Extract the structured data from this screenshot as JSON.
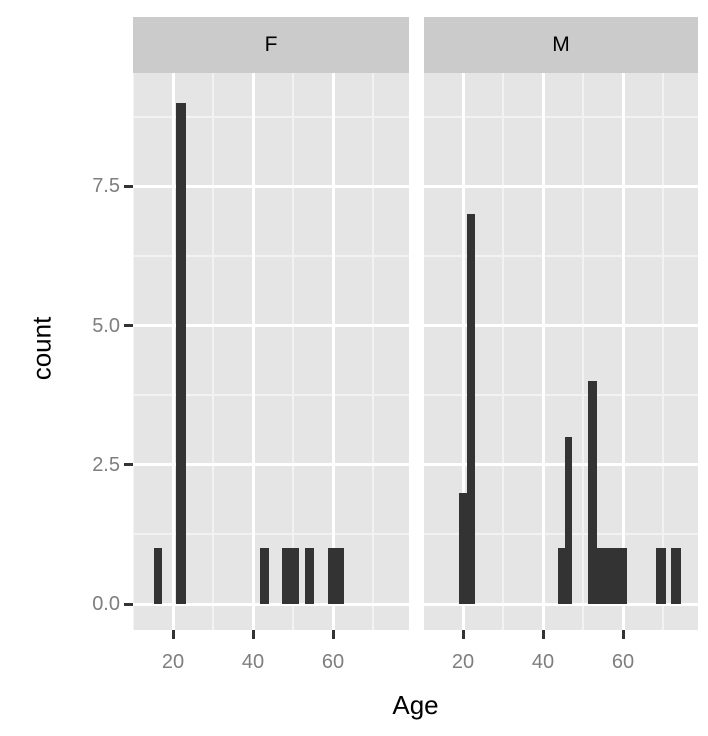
{
  "style": {
    "bar_color": "#333333",
    "panel_background": "#e5e5e5",
    "strip_background": "#cbcbcb",
    "grid_major_color": "#ffffff",
    "grid_minor_color": "#f2f2f2",
    "tick_color": "#333333",
    "axis_text_color": "#7e7e7e",
    "title_color": "#000000",
    "figure_background": "#ffffff"
  },
  "chart_data": {
    "type": "histogram",
    "title": "",
    "xlabel": "Age",
    "ylabel": "count",
    "legend": "none",
    "grid": true,
    "facet_levels": [
      "F",
      "M"
    ],
    "x_range": [
      10,
      79
    ],
    "y_range": [
      -0.5,
      9.55
    ],
    "x_ticks": [
      {
        "value": 20,
        "label": "20"
      },
      {
        "value": 40,
        "label": "40"
      },
      {
        "value": 60,
        "label": "60"
      }
    ],
    "y_ticks": [
      {
        "value": 0,
        "label": "0.0"
      },
      {
        "value": 2.5,
        "label": "2.5"
      },
      {
        "value": 5,
        "label": "5.0"
      },
      {
        "value": 7.5,
        "label": "7.5"
      }
    ],
    "x_minor_gridlines": [
      10,
      30,
      50,
      70
    ],
    "y_minor_gridlines": [
      1.25,
      3.75,
      6.25,
      8.75
    ],
    "facets": [
      {
        "label": "F",
        "bars": [
          {
            "x0": 15.2,
            "x1": 17.3,
            "count": 1
          },
          {
            "x0": 20.8,
            "x1": 23.2,
            "count": 9
          },
          {
            "x0": 41.8,
            "x1": 44.1,
            "count": 1
          },
          {
            "x0": 47.2,
            "x1": 51.6,
            "count": 1
          },
          {
            "x0": 52.9,
            "x1": 55.3,
            "count": 1
          },
          {
            "x0": 58.7,
            "x1": 62.8,
            "count": 1
          }
        ]
      },
      {
        "label": "M",
        "bars": [
          {
            "x0": 19.1,
            "x1": 20.9,
            "count": 2
          },
          {
            "x0": 20.9,
            "x1": 23.0,
            "count": 7
          },
          {
            "x0": 43.8,
            "x1": 45.4,
            "count": 1
          },
          {
            "x0": 45.4,
            "x1": 47.3,
            "count": 3
          },
          {
            "x0": 51.2,
            "x1": 61.0,
            "count": 1
          },
          {
            "x0": 51.2,
            "x1": 53.4,
            "count": 4
          },
          {
            "x0": 68.2,
            "x1": 70.7,
            "count": 1
          },
          {
            "x0": 72.0,
            "x1": 74.5,
            "count": 1
          }
        ]
      }
    ]
  }
}
